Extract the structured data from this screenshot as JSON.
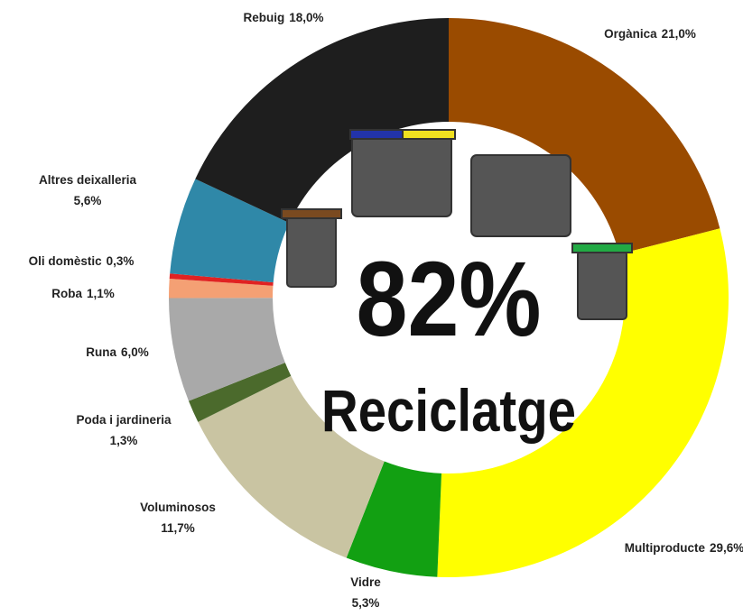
{
  "chart_data": {
    "type": "donut",
    "categories": [
      "Orgànica",
      "Multiproducte",
      "Vidre",
      "Voluminosos",
      "Poda i jardineria",
      "Runa",
      "Roba",
      "Oli domèstic",
      "Altres deixalleria",
      "Rebuig"
    ],
    "values": [
      21.0,
      29.6,
      5.3,
      11.7,
      1.3,
      6.0,
      1.1,
      0.3,
      5.6,
      18.0
    ],
    "value_labels": [
      "21,0%",
      "29,6%",
      "5,3%",
      "11,7%",
      "1,3%",
      "6,0%",
      "1,1%",
      "0,3%",
      "5,6%",
      "18,0%"
    ],
    "colors": [
      "#9a4b00",
      "#ffff00",
      "#12a012",
      "#c9c4a2",
      "#4b6a2c",
      "#a9a9a9",
      "#f4a074",
      "#e02222",
      "#2f88a8",
      "#1e1e1e"
    ],
    "center_value": "82%",
    "center_label": "Reciclatge"
  }
}
